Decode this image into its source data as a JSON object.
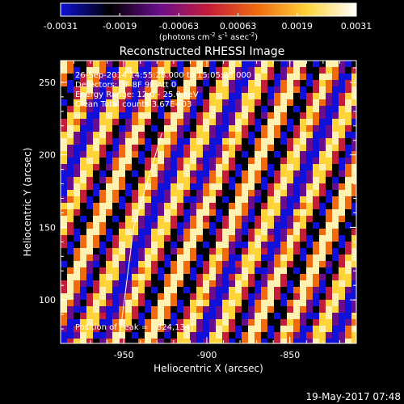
{
  "colorbar": {
    "ticks": [
      "-0.0031",
      "-0.0019",
      "-0.00063",
      "0.00063",
      "0.0019",
      "0.0031"
    ],
    "units_prefix": "(photons cm",
    "units_exp1": "-2",
    "units_mid": " s",
    "units_exp2": "-1",
    "units_mid2": " asec",
    "units_exp3": "-2",
    "units_suffix": ")",
    "colors": [
      "#1010d8",
      "#000000",
      "#6a0d8c",
      "#c41d3a",
      "#f06a10",
      "#ffd33a",
      "#ffffff"
    ]
  },
  "title": "Reconstructed RHESSI Image",
  "info_lines": [
    "26-Sep-2014 14:55:28.000 to 15:05:28.000",
    "Detectors: 3F 8F 9F Att 0",
    "Energy Range: 12.0 - 25.0 keV",
    "Clean    Total counts 3.67E+03"
  ],
  "peak_label": "Position of Peak = [-824,134]",
  "timestamp": "19-May-2017 07:48",
  "chart_data": {
    "type": "heatmap",
    "title": "Reconstructed RHESSI Image",
    "xlabel": "Heliocentric X (arcsec)",
    "ylabel": "Heliocentric Y (arcsec)",
    "xlim": [
      -988,
      -810
    ],
    "ylim": [
      70,
      265
    ],
    "x_ticks": [
      -950,
      -900,
      -850
    ],
    "y_ticks": [
      100,
      150,
      200,
      250
    ],
    "x_tick_labels": [
      "-950",
      "-900",
      "-850"
    ],
    "y_tick_labels": [
      "100",
      "150",
      "200",
      "250"
    ],
    "value_range": [
      -0.0031,
      0.0031
    ],
    "limb_line": [
      [
        -953,
        70
      ],
      [
        -944,
        150
      ],
      [
        -927,
        215
      ]
    ]
  }
}
